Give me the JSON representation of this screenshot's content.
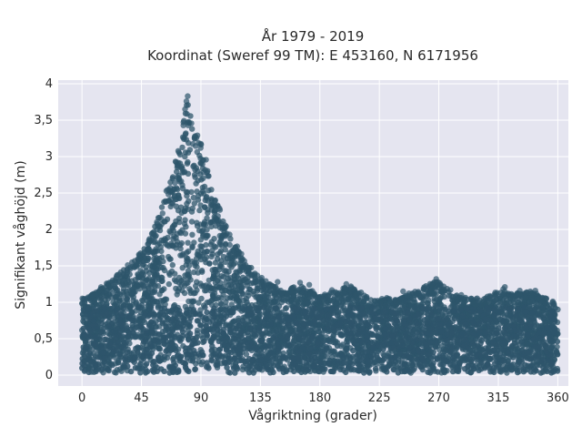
{
  "chart_data": {
    "type": "scatter",
    "title_line1": "År 1979 - 2019",
    "title_line2": "Koordinat (Sweref 99 TM): E 453160, N 6171956",
    "xlabel": "Vågriktning (grader)",
    "ylabel": "Signifikant våghöjd (m)",
    "xlim": [
      -18,
      368
    ],
    "ylim": [
      -0.15,
      4.05
    ],
    "x_ticks": [
      0,
      45,
      90,
      135,
      180,
      225,
      270,
      315,
      360
    ],
    "x_tick_labels": [
      "0",
      "45",
      "90",
      "135",
      "180",
      "225",
      "270",
      "315",
      "360"
    ],
    "y_ticks": [
      0,
      0.5,
      1,
      1.5,
      2,
      2.5,
      3,
      3.5,
      4
    ],
    "y_tick_labels": [
      "0",
      "0,5",
      "1",
      "1,5",
      "2",
      "2,5",
      "3",
      "3,5",
      "4"
    ],
    "grid": true,
    "marker_color": "#2e556b",
    "background_color": "#e5e5f0",
    "envelope": [
      {
        "direction": 0,
        "max_height": 1.05
      },
      {
        "direction": 10,
        "max_height": 1.15
      },
      {
        "direction": 20,
        "max_height": 1.3
      },
      {
        "direction": 30,
        "max_height": 1.45
      },
      {
        "direction": 40,
        "max_height": 1.6
      },
      {
        "direction": 50,
        "max_height": 1.85
      },
      {
        "direction": 60,
        "max_height": 2.3
      },
      {
        "direction": 70,
        "max_height": 2.9
      },
      {
        "direction": 75,
        "max_height": 3.3
      },
      {
        "direction": 80,
        "max_height": 3.8
      },
      {
        "direction": 85,
        "max_height": 3.4
      },
      {
        "direction": 90,
        "max_height": 3.2
      },
      {
        "direction": 95,
        "max_height": 2.9
      },
      {
        "direction": 100,
        "max_height": 2.5
      },
      {
        "direction": 110,
        "max_height": 2.0
      },
      {
        "direction": 120,
        "max_height": 1.7
      },
      {
        "direction": 135,
        "max_height": 1.35
      },
      {
        "direction": 150,
        "max_height": 1.2
      },
      {
        "direction": 165,
        "max_height": 1.25
      },
      {
        "direction": 180,
        "max_height": 1.1
      },
      {
        "direction": 200,
        "max_height": 1.25
      },
      {
        "direction": 225,
        "max_height": 1.05
      },
      {
        "direction": 245,
        "max_height": 1.1
      },
      {
        "direction": 268,
        "max_height": 1.32
      },
      {
        "direction": 285,
        "max_height": 1.1
      },
      {
        "direction": 300,
        "max_height": 1.05
      },
      {
        "direction": 320,
        "max_height": 1.2
      },
      {
        "direction": 340,
        "max_height": 1.15
      },
      {
        "direction": 360,
        "max_height": 1.0
      }
    ],
    "outliers": [
      {
        "x": 80,
        "y": 3.83
      },
      {
        "x": 79,
        "y": 3.76
      },
      {
        "x": 78,
        "y": 3.65
      },
      {
        "x": 268,
        "y": 1.32
      },
      {
        "x": 200,
        "y": 1.25
      },
      {
        "x": 165,
        "y": 1.27
      },
      {
        "x": 172,
        "y": 1.24
      },
      {
        "x": 320,
        "y": 1.21
      },
      {
        "x": 148,
        "y": 1.28
      },
      {
        "x": 243,
        "y": 1.15
      },
      {
        "x": 253,
        "y": 1.12
      },
      {
        "x": 287,
        "y": 1.1
      },
      {
        "x": 343,
        "y": 1.16
      }
    ]
  }
}
